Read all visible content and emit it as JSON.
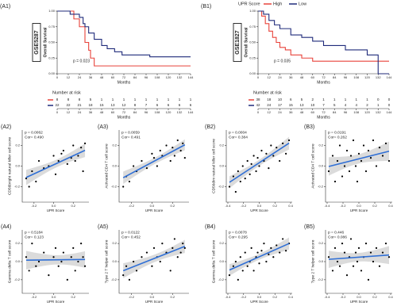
{
  "chart_data": [
    {
      "type": "km",
      "panel": "(A1)",
      "dataset": "GSE5287",
      "y_label": "Overall Survival",
      "x_label": "Months",
      "p_label": "p = 0.023",
      "risk_title": "Number at risk",
      "xlim": [
        0,
        144
      ],
      "ylim": [
        0,
        1
      ],
      "xticks": [
        0,
        12,
        24,
        36,
        48,
        60,
        72,
        84,
        96,
        108,
        120,
        132,
        144
      ],
      "yticks": [
        {
          "value": 0,
          "label": "0.00"
        },
        {
          "value": 0.25,
          "label": "0.25"
        },
        {
          "value": 0.5,
          "label": "0.50"
        },
        {
          "value": 0.75,
          "label": "0.75"
        },
        {
          "value": 1,
          "label": "1.00"
        }
      ],
      "series": [
        {
          "color": "#e8423a",
          "x": [
            0,
            18,
            24,
            30,
            34,
            36,
            40,
            144
          ],
          "values": [
            1,
            0.875,
            0.75,
            0.5,
            0.375,
            0.25,
            0.125,
            0.125
          ],
          "risk": [
            8,
            8,
            8,
            5,
            1,
            1,
            1,
            1,
            1,
            1,
            1,
            1,
            1
          ]
        },
        {
          "color": "#1f2a7a",
          "x": [
            0,
            14,
            24,
            28,
            30,
            34,
            40,
            48,
            54,
            62,
            70,
            100,
            144
          ],
          "values": [
            1,
            0.95,
            0.9,
            0.8,
            0.75,
            0.65,
            0.55,
            0.45,
            0.4,
            0.35,
            0.3,
            0.27,
            0.27
          ],
          "risk": [
            22,
            22,
            21,
            18,
            15,
            13,
            12,
            8,
            7,
            6,
            6,
            6,
            6
          ]
        }
      ]
    },
    {
      "type": "km",
      "panel": "(B1)",
      "dataset": "GSE1827",
      "y_label": "Overall Survival",
      "x_label": "Months",
      "p_label": "p = 0.035",
      "risk_title": "Number at risk",
      "legend": "top",
      "legend_title": "UPR Score",
      "xlim": [
        0,
        144
      ],
      "ylim": [
        0,
        1
      ],
      "xticks": [
        0,
        12,
        24,
        36,
        48,
        60,
        72,
        84,
        96,
        108,
        120,
        132,
        144
      ],
      "yticks": [
        {
          "value": 0,
          "label": "0.00"
        },
        {
          "value": 0.25,
          "label": "0.25"
        },
        {
          "value": 0.5,
          "label": "0.50"
        },
        {
          "value": 0.75,
          "label": "0.75"
        },
        {
          "value": 1,
          "label": "1.00"
        }
      ],
      "series": [
        {
          "name": "High",
          "color": "#e8423a",
          "x": [
            0,
            4,
            8,
            12,
            16,
            20,
            24,
            30,
            36,
            48,
            60,
            144
          ],
          "values": [
            1,
            0.92,
            0.8,
            0.68,
            0.58,
            0.5,
            0.42,
            0.38,
            0.3,
            0.25,
            0.2,
            0.2
          ],
          "risk": [
            38,
            18,
            10,
            6,
            5,
            2,
            1,
            1,
            1,
            1,
            1,
            0,
            0
          ]
        },
        {
          "name": "Low",
          "color": "#1f2a7a",
          "x": [
            0,
            6,
            12,
            18,
            24,
            36,
            48,
            60,
            72,
            96,
            120,
            132,
            144
          ],
          "values": [
            1,
            0.95,
            0.85,
            0.78,
            0.72,
            0.62,
            0.58,
            0.52,
            0.45,
            0.38,
            0.3,
            0,
            0
          ],
          "risk": [
            42,
            24,
            17,
            15,
            13,
            10,
            7,
            5,
            4,
            4,
            2,
            1,
            0
          ]
        }
      ]
    },
    {
      "type": "scatter",
      "panel": "(A2)",
      "x_label": "UPR Score",
      "y_label": "CD56bright natural killer cell score",
      "annotations": [
        "p = 0.0062",
        "Cor= 0.490"
      ],
      "xlim": [
        -0.32,
        0.36
      ],
      "ylim": [
        -0.35,
        0.35
      ],
      "xticks": [
        -0.2,
        {
          "value": 0,
          "label": "0.0"
        },
        0.2
      ],
      "yticks": [
        -0.2,
        {
          "value": 0,
          "label": "0.0"
        },
        0.2
      ],
      "x": [
        -0.28,
        -0.25,
        -0.22,
        -0.18,
        -0.15,
        -0.1,
        -0.05,
        0,
        0.02,
        0.05,
        0.08,
        0.1,
        0.14,
        0.18,
        0.2,
        0.22,
        0.25,
        0.28,
        0.3,
        0.32
      ],
      "values": [
        -0.12,
        -0.2,
        -0.05,
        -0.15,
        0.05,
        -0.02,
        0,
        0.1,
        -0.08,
        0.05,
        0.12,
        0.15,
        0.02,
        0.08,
        0.2,
        0.05,
        0.1,
        0.18,
        -0.05,
        0.22
      ]
    },
    {
      "type": "scatter",
      "panel": "(A3)",
      "x_label": "UPR Score",
      "y_label": "Activated CD4 T cell score",
      "annotations": [
        "p = 0.0059",
        "Cor= 0.491"
      ],
      "xlim": [
        -0.32,
        0.36
      ],
      "ylim": [
        -0.35,
        0.35
      ],
      "xticks": [
        -0.2,
        {
          "value": 0,
          "label": "0.0"
        },
        0.2
      ],
      "yticks": [
        -0.2,
        {
          "value": 0,
          "label": "0.0"
        },
        0.2
      ],
      "x": [
        -0.28,
        -0.25,
        -0.22,
        -0.18,
        -0.15,
        -0.1,
        -0.05,
        0,
        0.02,
        0.05,
        0.08,
        0.1,
        0.14,
        0.18,
        0.2,
        0.22,
        0.25,
        0.28,
        0.3,
        0.32
      ],
      "values": [
        -0.2,
        -0.1,
        -0.15,
        0,
        -0.05,
        0.05,
        -0.02,
        0.12,
        0.08,
        0,
        0.15,
        0.1,
        0.2,
        0.05,
        0.18,
        0.1,
        0.25,
        0.15,
        0.22,
        0.08
      ]
    },
    {
      "type": "scatter",
      "panel": "(B2)",
      "x_label": "UPR Score",
      "y_label": "CD56dim natural killer cell score",
      "annotations": [
        "p = 0.0004",
        "Cor= 0.384"
      ],
      "xlim": [
        -0.42,
        0.42
      ],
      "ylim": [
        -0.35,
        0.35
      ],
      "xticks": [
        -0.4,
        -0.2,
        {
          "value": 0,
          "label": "0.0"
        },
        0.2,
        0.4
      ],
      "yticks": [
        -0.2,
        {
          "value": 0,
          "label": "0.0"
        },
        0.2
      ],
      "x": [
        -0.38,
        -0.33,
        -0.3,
        -0.27,
        -0.24,
        -0.21,
        -0.18,
        -0.15,
        -0.12,
        -0.1,
        -0.07,
        -0.04,
        -0.02,
        0,
        0.03,
        0.06,
        0.09,
        0.12,
        0.15,
        0.18,
        0.22,
        0.26,
        0.3,
        0.34,
        0.38
      ],
      "values": [
        -0.2,
        -0.1,
        -0.25,
        -0.05,
        -0.15,
        0,
        -0.12,
        0.05,
        -0.08,
        0.02,
        0.1,
        -0.05,
        0.08,
        0,
        0.15,
        0.05,
        0.12,
        -0.02,
        0.2,
        0.1,
        0.18,
        0.05,
        0.22,
        0.12,
        0.25
      ]
    },
    {
      "type": "scatter",
      "panel": "(B3)",
      "x_label": "UPR Score",
      "y_label": "Activated CD4 T cell score",
      "annotations": [
        "p = 0.0191",
        "Cor= 0.262"
      ],
      "xlim": [
        -0.42,
        0.42
      ],
      "ylim": [
        -0.35,
        0.35
      ],
      "xticks": [
        -0.4,
        -0.2,
        {
          "value": 0,
          "label": "0.0"
        },
        0.2,
        0.4
      ],
      "yticks": [
        -0.2,
        {
          "value": 0,
          "label": "0.0"
        },
        0.2
      ],
      "x": [
        -0.38,
        -0.33,
        -0.3,
        -0.27,
        -0.24,
        -0.21,
        -0.18,
        -0.15,
        -0.12,
        -0.1,
        -0.07,
        -0.04,
        -0.02,
        0,
        0.03,
        0.06,
        0.09,
        0.12,
        0.15,
        0.18,
        0.22,
        0.26,
        0.3,
        0.34,
        0.38
      ],
      "values": [
        -0.05,
        0.1,
        -0.15,
        0.05,
        0.2,
        -0.1,
        0,
        0.15,
        -0.05,
        0.1,
        0.25,
        0,
        -0.15,
        0.12,
        0.05,
        0.2,
        -0.05,
        0.15,
        0.08,
        0.25,
        0,
        0.18,
        0.1,
        0.22,
        0.05
      ]
    },
    {
      "type": "scatter",
      "panel": "(A4)",
      "x_label": "UPR Score",
      "y_label": "Gamma delta T cell score",
      "annotations": [
        "p = 0.5184",
        "Cor= 0.123"
      ],
      "xlim": [
        -0.32,
        0.36
      ],
      "ylim": [
        -0.35,
        0.35
      ],
      "xticks": [
        -0.2,
        {
          "value": 0,
          "label": "0.0"
        },
        0.2
      ],
      "yticks": [
        -0.2,
        {
          "value": 0,
          "label": "0.0"
        },
        0.2
      ],
      "x": [
        -0.28,
        -0.25,
        -0.22,
        -0.18,
        -0.15,
        -0.1,
        -0.05,
        0,
        0.02,
        0.05,
        0.08,
        0.1,
        0.14,
        0.18,
        0.2,
        0.22,
        0.25,
        0.28,
        0.3,
        0.32
      ],
      "values": [
        0.05,
        -0.1,
        0.2,
        -0.05,
        0,
        0.1,
        -0.15,
        0.05,
        0.15,
        -0.05,
        0,
        0.1,
        -0.2,
        0.05,
        0.15,
        -0.1,
        0,
        0.2,
        0.05,
        -0.05
      ]
    },
    {
      "type": "scatter",
      "panel": "(A5)",
      "x_label": "UPR Score",
      "y_label": "Type 2 T helper cell score",
      "annotations": [
        "p = 0.0122",
        "Cor= 0.452"
      ],
      "xlim": [
        -0.32,
        0.36
      ],
      "ylim": [
        -0.35,
        0.35
      ],
      "xticks": [
        -0.2,
        {
          "value": 0,
          "label": "0.0"
        },
        0.2
      ],
      "yticks": [
        -0.2,
        {
          "value": 0,
          "label": "0.0"
        },
        0.2
      ],
      "x": [
        -0.28,
        -0.25,
        -0.22,
        -0.18,
        -0.15,
        -0.1,
        -0.05,
        0,
        0.02,
        0.05,
        0.08,
        0.1,
        0.14,
        0.18,
        0.2,
        0.22,
        0.25,
        0.28,
        0.3,
        0.32
      ],
      "values": [
        -0.15,
        -0.05,
        -0.2,
        0,
        -0.1,
        0.05,
        0.1,
        -0.05,
        0.15,
        0.05,
        0,
        0.2,
        0.1,
        -0.1,
        0.15,
        0.25,
        0.05,
        0.1,
        0.2,
        0.15
      ]
    },
    {
      "type": "scatter",
      "panel": "(B4)",
      "x_label": "UPR Score",
      "y_label": "Gamma delta T cell score",
      "annotations": [
        "p = 0.0078",
        "Cor= 0.295"
      ],
      "xlim": [
        -0.42,
        0.42
      ],
      "ylim": [
        -0.35,
        0.35
      ],
      "xticks": [
        -0.4,
        -0.2,
        {
          "value": 0,
          "label": "0.0"
        },
        0.2,
        0.4
      ],
      "yticks": [
        -0.2,
        {
          "value": 0,
          "label": "0.0"
        },
        0.2
      ],
      "x": [
        -0.38,
        -0.33,
        -0.3,
        -0.27,
        -0.24,
        -0.21,
        -0.18,
        -0.15,
        -0.12,
        -0.1,
        -0.07,
        -0.04,
        -0.02,
        0,
        0.03,
        0.06,
        0.09,
        0.12,
        0.15,
        0.18,
        0.22,
        0.26,
        0.3,
        0.34,
        0.38
      ],
      "values": [
        -0.15,
        -0.05,
        0,
        -0.2,
        0.05,
        -0.1,
        0.1,
        -0.05,
        0,
        0.15,
        -0.1,
        0.05,
        0.1,
        -0.02,
        0.12,
        0.2,
        0,
        0.08,
        0.15,
        0.05,
        0.18,
        0.1,
        0.25,
        0.12,
        0.2
      ]
    },
    {
      "type": "scatter",
      "panel": "(B5)",
      "x_label": "UPR Score",
      "y_label": "Type 2 T helper cell score",
      "annotations": [
        "p = 0.446",
        "Cor= 0.086"
      ],
      "xlim": [
        -0.42,
        0.42
      ],
      "ylim": [
        -0.35,
        0.35
      ],
      "xticks": [
        -0.4,
        -0.2,
        {
          "value": 0,
          "label": "0.0"
        },
        0.2,
        0.4
      ],
      "yticks": [
        -0.2,
        {
          "value": 0,
          "label": "0.0"
        },
        0.2
      ],
      "x": [
        -0.38,
        -0.33,
        -0.3,
        -0.27,
        -0.24,
        -0.21,
        -0.18,
        -0.15,
        -0.12,
        -0.1,
        -0.07,
        -0.04,
        -0.02,
        0,
        0.03,
        0.06,
        0.09,
        0.12,
        0.15,
        0.18,
        0.22,
        0.26,
        0.3,
        0.34,
        0.38
      ],
      "values": [
        0.05,
        -0.1,
        0.15,
        0,
        -0.05,
        0.2,
        0.1,
        -0.15,
        0.05,
        0.25,
        -0.05,
        0.1,
        0,
        0.15,
        -0.1,
        0.05,
        0.2,
        -0.2,
        0.1,
        0,
        0.15,
        -0.05,
        0.1,
        0.2,
        0.05
      ]
    }
  ]
}
